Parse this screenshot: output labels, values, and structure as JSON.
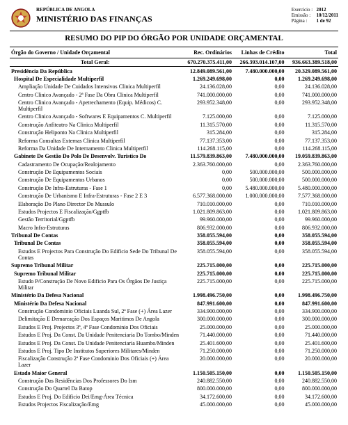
{
  "header": {
    "country_line": "REPÚBLICA DE ANGOLA",
    "ministry_line": "MINISTÉRIO DAS FINANÇAS",
    "meta": {
      "exercicio_label": "Exercício :",
      "exercicio_value": "2012",
      "emissao_label": "Emissão  :",
      "emissao_value": "10/12/2011",
      "pagina_label": "Página   :",
      "pagina_value": "1 de 92"
    }
  },
  "report_title": "RESUMO DO PIP DO ÓRGÃO POR UNIDADE ORÇAMENTAL",
  "columns": {
    "c0": "Órgão do Governo / Unidade Orçamental",
    "c1": "Rec. Ordinários",
    "c2": "Linhas de Crédito",
    "c3": "Total"
  },
  "rows": [
    {
      "lvl": "total",
      "name": "Total Geral:",
      "v1": "670.270.375.411,00",
      "v2": "266.393.014.107,00",
      "v3": "936.663.389.518,00"
    },
    {
      "lvl": "org",
      "name": "Presidência Da República",
      "v1": "12.849.089.561,00",
      "v2": "7.480.000.000,00",
      "v3": "20.329.089.561,00"
    },
    {
      "lvl": "unit",
      "name": "Hospital De Especialidade Multiperfil",
      "v1": "1.269.249.698,00",
      "v2": "0,00",
      "v3": "1.269.249.698,00"
    },
    {
      "lvl": "item",
      "name": "Ampliação Unidade De Cuidados Intensivos Clinica Multiperfil",
      "v1": "24.136.028,00",
      "v2": "0,00",
      "v3": "24.136.028,00"
    },
    {
      "lvl": "item",
      "name": "Centro Clinico Avançado - 2ª Fase Da Obra Clinica Multiperfil",
      "v1": "741.000.000,00",
      "v2": "0,00",
      "v3": "741.000.000,00"
    },
    {
      "lvl": "item",
      "name": "Centro Clinico Avançado - Apetrechamento (Equip. Médicos) C. Multiperfil",
      "v1": "293.952.348,00",
      "v2": "0,00",
      "v3": "293.952.348,00"
    },
    {
      "lvl": "item",
      "name": "Centro Clinico Avançado - Softwares E Equipamentos C. Multiperfil",
      "v1": "7.125.000,00",
      "v2": "0,00",
      "v3": "7.125.000,00"
    },
    {
      "lvl": "item",
      "name": "Construção Anfiteatro Na Clinica Multiperfil",
      "v1": "11.315.570,00",
      "v2": "0,00",
      "v3": "11.315.570,00"
    },
    {
      "lvl": "item",
      "name": "Construção Heliponto Na Clinica Multiperfil",
      "v1": "315.284,00",
      "v2": "0,00",
      "v3": "315.284,00"
    },
    {
      "lvl": "item",
      "name": "Reforma Consultas Externas Clinica Multiperfil",
      "v1": "77.137.353,00",
      "v2": "0,00",
      "v3": "77.137.353,00"
    },
    {
      "lvl": "item",
      "name": "Reforma Da Unidade De Internamento Clinica Multiperfil",
      "v1": "114.268.115,00",
      "v2": "0,00",
      "v3": "114.268.115,00"
    },
    {
      "lvl": "unit",
      "name": "Gabinete De Gestão Do Polo De Desenvolv. Turistico Do",
      "v1": "11.579.839.863,00",
      "v2": "7.480.000.000,00",
      "v3": "19.059.839.863,00"
    },
    {
      "lvl": "item",
      "name": "Cadastramento De Ocupação/Realojamento",
      "v1": "2.363.760.000,00",
      "v2": "0,00",
      "v3": "2.363.760.000,00"
    },
    {
      "lvl": "item",
      "name": "Construção De Equipamentos Sociais",
      "v1": "0,00",
      "v2": "500.000.000,00",
      "v3": "500.000.000,00"
    },
    {
      "lvl": "item",
      "name": "Construção De Equipamentos Urbanos",
      "v1": "0,00",
      "v2": "500.000.000,00",
      "v3": "500.000.000,00"
    },
    {
      "lvl": "item",
      "name": "Construção De Infra-Estruturas - Fase 1",
      "v1": "0,00",
      "v2": "5.480.000.000,00",
      "v3": "5.480.000.000,00"
    },
    {
      "lvl": "item",
      "name": "Construção De Urbanismo E Infra-Estruturas - Fase 2 E 3",
      "v1": "6.577.368.000,00",
      "v2": "1.000.000.000,00",
      "v3": "7.577.368.000,00"
    },
    {
      "lvl": "item",
      "name": "Elaboração Do Plano Director Do Mussulo",
      "v1": "710.010.000,00",
      "v2": "0,00",
      "v3": "710.010.000,00"
    },
    {
      "lvl": "item",
      "name": "Estudos Projectos E Fiscalização/Ggptfb",
      "v1": "1.021.809.863,00",
      "v2": "0,00",
      "v3": "1.021.809.863,00"
    },
    {
      "lvl": "item",
      "name": "Gestão Territorial/Ggptfb",
      "v1": "99.960.000,00",
      "v2": "0,00",
      "v3": "99.960.000,00"
    },
    {
      "lvl": "item",
      "name": "Macro Infra-Estruturas",
      "v1": "806.932.000,00",
      "v2": "0,00",
      "v3": "806.932.000,00"
    },
    {
      "lvl": "org",
      "name": "Tribunal De Contas",
      "v1": "358.055.594,00",
      "v2": "0,00",
      "v3": "358.055.594,00"
    },
    {
      "lvl": "unit",
      "name": "Tribunal De Contas",
      "v1": "358.055.594,00",
      "v2": "0,00",
      "v3": "358.055.594,00"
    },
    {
      "lvl": "item",
      "name": "Estudos E Projectos Para Construção Do Edificio Sede Do Tribunal De Contas",
      "v1": "358.055.594,00",
      "v2": "0,00",
      "v3": "358.055.594,00"
    },
    {
      "lvl": "org",
      "name": "Supremo Tribunal Militar",
      "v1": "225.715.000,00",
      "v2": "0,00",
      "v3": "225.715.000,00"
    },
    {
      "lvl": "unit",
      "name": "Supremo Tribunal Militar",
      "v1": "225.715.000,00",
      "v2": "0,00",
      "v3": "225.715.000,00"
    },
    {
      "lvl": "item",
      "name": "Estudo P/Construção De Novo Edificio Para Os Órgãos De Justiça Militar",
      "v1": "225.715.000,00",
      "v2": "0,00",
      "v3": "225.715.000,00"
    },
    {
      "lvl": "org",
      "name": "Ministério Da Defesa Nacional",
      "v1": "1.998.496.750,00",
      "v2": "0,00",
      "v3": "1.998.496.750,00"
    },
    {
      "lvl": "unit",
      "name": "Ministério Da Defesa Nacional",
      "v1": "847.991.600,00",
      "v2": "0,00",
      "v3": "847.991.600,00"
    },
    {
      "lvl": "item",
      "name": "Construção Condominio Oficiais Luanda Sul, 2ª Fase (+) Área Lazer",
      "v1": "334.900.000,00",
      "v2": "0,00",
      "v3": "334.900.000,00"
    },
    {
      "lvl": "item",
      "name": "Delimitação E Demarcação Dos Espaços Maritimos De Angola",
      "v1": "300.000.000,00",
      "v2": "0,00",
      "v3": "300.000.000,00"
    },
    {
      "lvl": "item",
      "name": "Estudos E Proj. Projectos 3ª, 4ª Fase Condominio Dos Oficiais",
      "v1": "25.000.000,00",
      "v2": "0,00",
      "v3": "25.000.000,00"
    },
    {
      "lvl": "item",
      "name": "Estudos E Proj. Da Const. Da Unidade Penitenciaria Do Tombo/Minden",
      "v1": "71.440.000,00",
      "v2": "0,00",
      "v3": "71.440.000,00"
    },
    {
      "lvl": "item",
      "name": "Estudos E Proj. Da Const. Da Unidade Penitenciaria Huambo/Minden",
      "v1": "25.401.600,00",
      "v2": "0,00",
      "v3": "25.401.600,00"
    },
    {
      "lvl": "item",
      "name": "Estudos E Proj. Tipo De Institutos Superiores Militares/Minden",
      "v1": "71.250.000,00",
      "v2": "0,00",
      "v3": "71.250.000,00"
    },
    {
      "lvl": "item",
      "name": "Fiscalização Construção 2ª Fase Condominio Dos Oficiais (+) Área Lazer",
      "v1": "20.000.000,00",
      "v2": "0,00",
      "v3": "20.000.000,00"
    },
    {
      "lvl": "unit",
      "name": "Estado Maior General",
      "v1": "1.150.505.150,00",
      "v2": "0,00",
      "v3": "1.150.505.150,00"
    },
    {
      "lvl": "item",
      "name": "Construção Das Residências Dos Professores Do Ism",
      "v1": "240.882.550,00",
      "v2": "0,00",
      "v3": "240.882.550,00"
    },
    {
      "lvl": "item",
      "name": "Construção Do Quartel Da Batop",
      "v1": "800.000.000,00",
      "v2": "0,00",
      "v3": "800.000.000,00"
    },
    {
      "lvl": "item",
      "name": "Estudos E Proj. Do Edificio Dei/Emg-Área Técnica",
      "v1": "34.172.600,00",
      "v2": "0,00",
      "v3": "34.172.600,00"
    },
    {
      "lvl": "item",
      "name": "Estudos Projectos Fiscalização/Emg",
      "v1": "45.000.000,00",
      "v2": "0,00",
      "v3": "45.000.000,00"
    }
  ]
}
